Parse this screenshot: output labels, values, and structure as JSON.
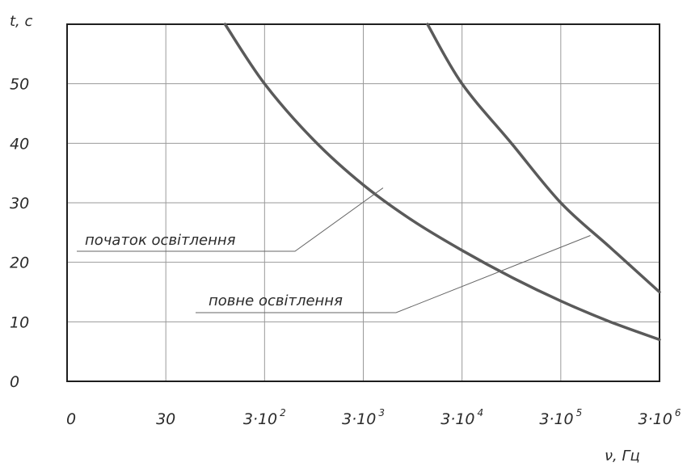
{
  "chart_data": {
    "type": "line",
    "title": "",
    "xlabel": "ν, Гц",
    "ylabel": "t, c",
    "ylim": [
      0,
      60
    ],
    "grid": true,
    "x_ticks": [
      {
        "base": "0",
        "exp": ""
      },
      {
        "base": "30",
        "exp": ""
      },
      {
        "base": "3·10",
        "exp": "2"
      },
      {
        "base": "3·10",
        "exp": "3"
      },
      {
        "base": "3·10",
        "exp": "4"
      },
      {
        "base": "3·10",
        "exp": "5"
      },
      {
        "base": "3·10",
        "exp": "6"
      }
    ],
    "y_ticks": [
      "0",
      "10",
      "20",
      "30",
      "40",
      "50"
    ],
    "x_scale_note": "tick positions 0..6 = 0, 30, 3·10^2 ... 3·10^6",
    "series": [
      {
        "name": "початок освітлення",
        "color": "#5a5a5a",
        "x": [
          1.6,
          2.0,
          2.5,
          3.0,
          3.5,
          4.0,
          4.5,
          5.0,
          5.5,
          6.0
        ],
        "y": [
          60,
          50,
          40.5,
          33,
          27,
          22,
          17.5,
          13.5,
          10,
          7
        ]
      },
      {
        "name": "повне освітлення",
        "color": "#5a5a5a",
        "x": [
          3.65,
          4.0,
          4.5,
          5.0,
          5.5,
          6.0
        ],
        "y": [
          60,
          50,
          40,
          30,
          22.5,
          15
        ]
      }
    ],
    "annotations": [
      {
        "text": "початок освітлення",
        "series": 0
      },
      {
        "text": "повне освітлення",
        "series": 1
      }
    ]
  }
}
